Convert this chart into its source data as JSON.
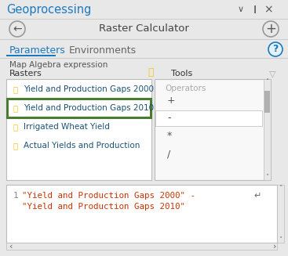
{
  "bg_color": "#e8e8e8",
  "header_bg": "#e8e8e8",
  "title_geoprocessing": "Geoprocessing",
  "title_tool": "Raster Calculator",
  "tab1": "Parameters",
  "tab2": "Environments",
  "map_algebra_label": "Map Algebra expression",
  "rasters_label": "Rasters",
  "tools_label": "Tools",
  "operators_label": "Operators",
  "raster_items": [
    "Yield and Production Gaps 2000",
    "Yield and Production Gaps 2010",
    "Irrigated Wheat Yield",
    "Actual Yields and Production"
  ],
  "selected_item_index": 1,
  "operators": [
    "+",
    "-",
    "*",
    "/"
  ],
  "highlighted_operator": "-",
  "expression_line1": "\"Yield and Production Gaps 2000\" -",
  "expression_line2": "\"Yield and Production Gaps 2010\"",
  "expression_line_number": "1",
  "geo_title_color": "#1a7abf",
  "tab_active_color": "#1a7abf",
  "tab_inactive_color": "#666666",
  "raster_text_color": "#1a5276",
  "expression_text_color": "#cc3300",
  "operator_color": "#555555",
  "operator_highlight_color": "#1a5276",
  "folder_color": "#f5c518",
  "selected_border_color": "#4a7c2f",
  "list_bg": "#ffffff",
  "tools_bg": "#f8f8f8",
  "expr_bg": "#ffffff",
  "line_number_color": "#888888",
  "separator_color": "#cccccc",
  "scrollbar_track": "#e8e8e8",
  "scrollbar_thumb": "#b0b0b0",
  "border_color": "#bbbbbb",
  "icon_circle_color": "#e6f2fb",
  "icon_circle_border": "#1a7abf"
}
